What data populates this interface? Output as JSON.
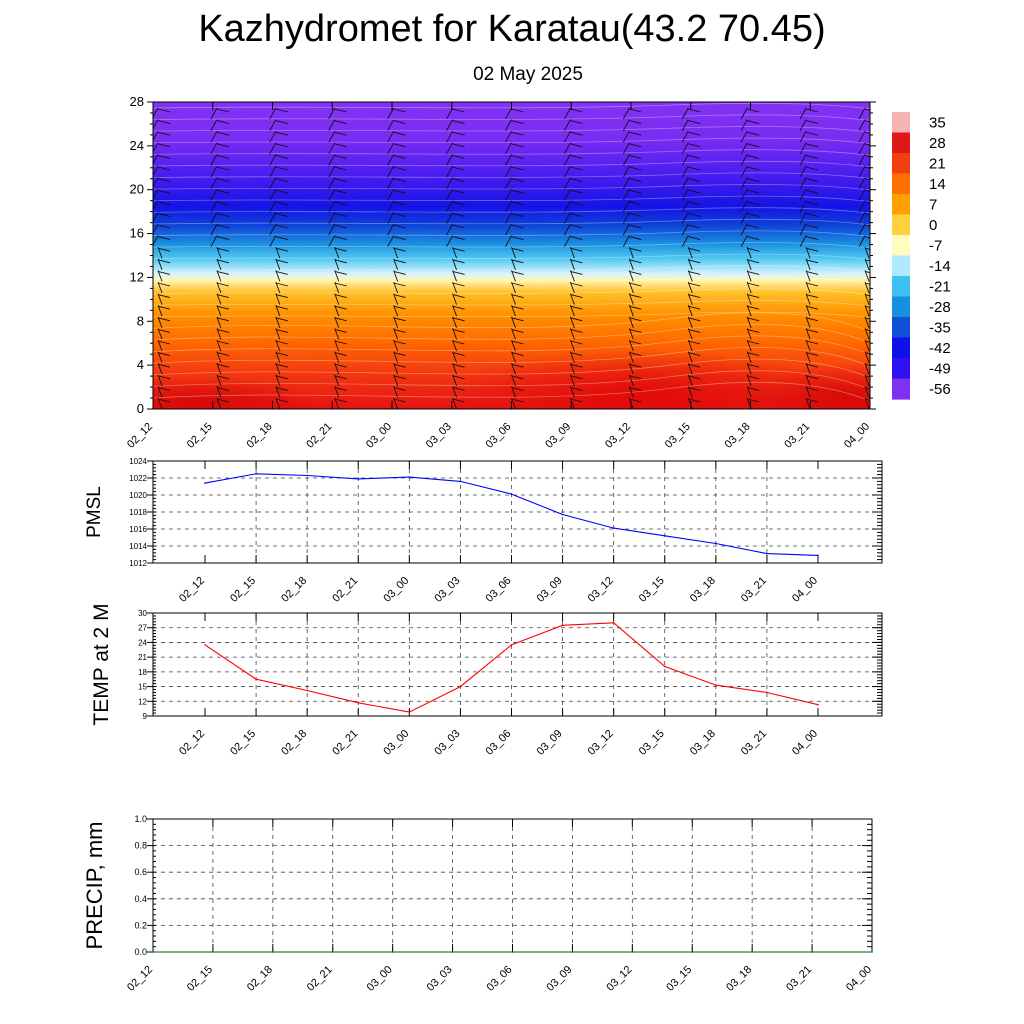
{
  "title": "Kazhydromet for Karatau(43.2 70.45)",
  "subtitle": "02 May 2025",
  "time_labels": [
    "02_12",
    "02_15",
    "02_18",
    "02_21",
    "03_00",
    "03_03",
    "03_06",
    "03_09",
    "03_12",
    "03_15",
    "03_18",
    "03_21",
    "04_00"
  ],
  "chart_data": [
    {
      "type": "heatmap",
      "name": "temperature-cross-section",
      "ylim": [
        0,
        28
      ],
      "yticks": [
        "0",
        "4",
        "8",
        "12",
        "16",
        "20",
        "24",
        "28"
      ],
      "colorbar_labels": [
        "35",
        "28",
        "21",
        "14",
        "7",
        "0",
        "-7",
        "-14",
        "-21",
        "-28",
        "-35",
        "-42",
        "-49",
        "-56"
      ],
      "colorbar_colors": [
        "#f4b4b4",
        "#e01818",
        "#f04010",
        "#ff7000",
        "#ffa000",
        "#ffd040",
        "#fffcc0",
        "#b0e8ff",
        "#40c0f0",
        "#1890e0",
        "#1050d8",
        "#1010e8",
        "#3010f0",
        "#8030f0"
      ],
      "overlay": "wind-barbs"
    },
    {
      "type": "line",
      "ylabel": "PMSL",
      "ylim": [
        1012,
        1024
      ],
      "yticks": [
        "1012",
        "1014",
        "1016",
        "1018",
        "1020",
        "1022",
        "1024"
      ],
      "color": "#0000ff",
      "values": [
        1021.4,
        1022.5,
        1022.3,
        1021.9,
        1022.1,
        1021.6,
        1020.1,
        1017.7,
        1016.1,
        1015.2,
        1014.3,
        1013.1,
        1012.9
      ]
    },
    {
      "type": "line",
      "ylabel": "TEMP at 2 M",
      "ylim": [
        9,
        30
      ],
      "yticks": [
        "9",
        "12",
        "15",
        "18",
        "21",
        "24",
        "27",
        "30"
      ],
      "color": "#ff0000",
      "values": [
        23.5,
        16.5,
        14.2,
        11.7,
        9.8,
        15.0,
        23.5,
        27.5,
        28.0,
        19.1,
        15.3,
        13.8,
        11.3
      ]
    },
    {
      "type": "line",
      "ylabel": "PRECIP, mm",
      "ylim": [
        0.0,
        1.0
      ],
      "yticks": [
        "0.0",
        "0.2",
        "0.4",
        "0.6",
        "0.8",
        "1.0"
      ],
      "color": "#006400",
      "values": [
        0,
        0,
        0,
        0,
        0,
        0,
        0,
        0,
        0,
        0,
        0,
        0,
        0
      ]
    }
  ]
}
